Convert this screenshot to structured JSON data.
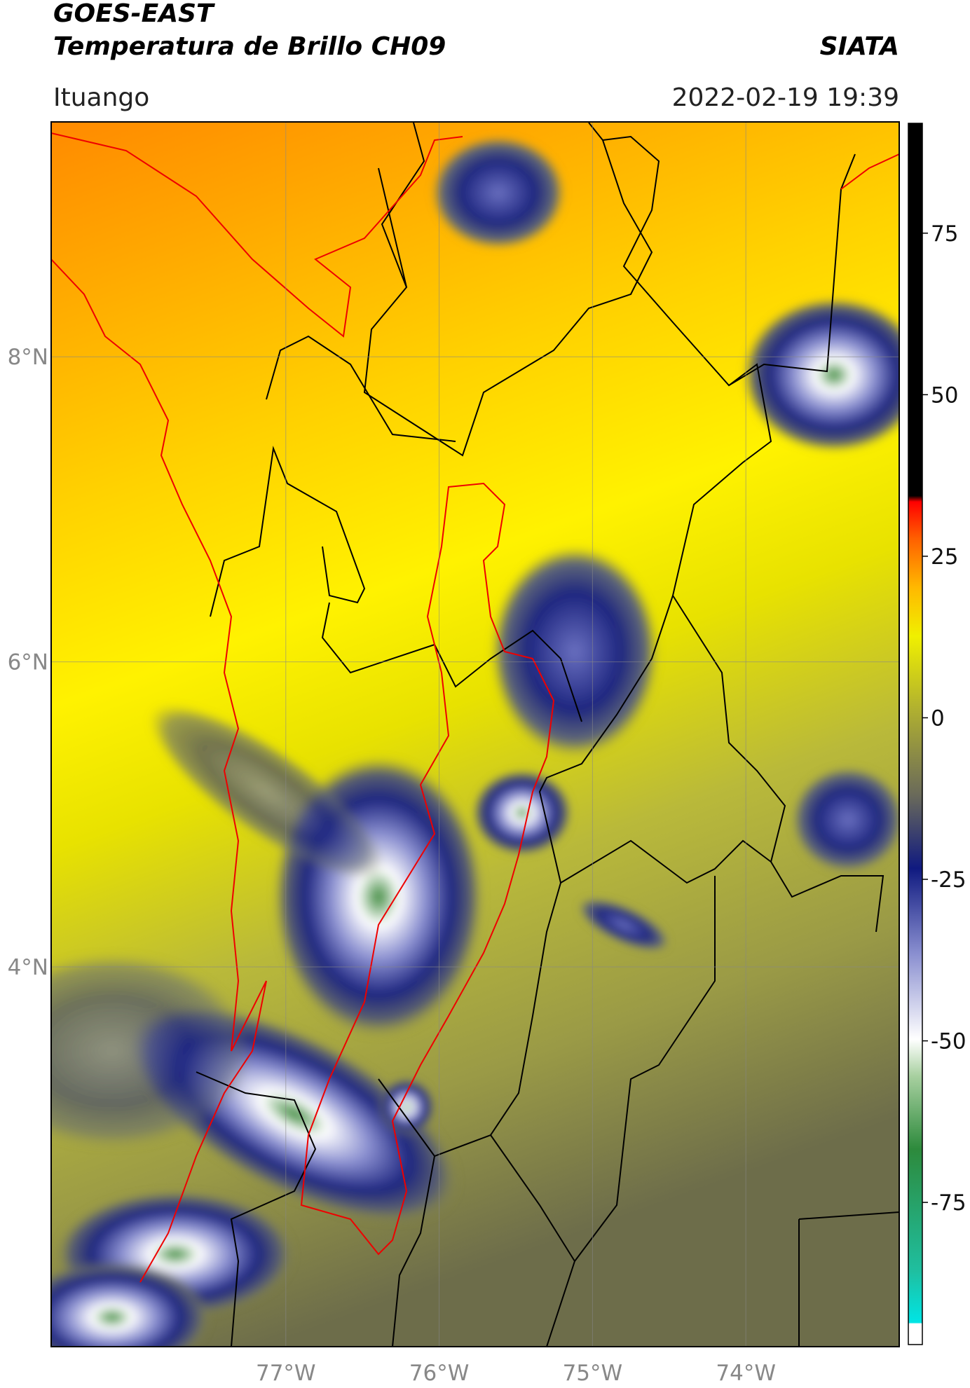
{
  "header": {
    "title": "GOES-EAST",
    "subtitle": "Temperatura de Brillo CH09",
    "organization": "SIATA",
    "location": "Ituango",
    "datetime": "2022-02-19 19:39"
  },
  "map": {
    "lon_range": [
      -78.53,
      -73.0
    ],
    "lat_range": [
      1.51,
      9.54
    ],
    "lat_ticks": [
      {
        "value": 8,
        "label": "8°N"
      },
      {
        "value": 6,
        "label": "6°N"
      },
      {
        "value": 4,
        "label": "4°N"
      }
    ],
    "lon_ticks": [
      {
        "value": -77,
        "label": "77°W"
      },
      {
        "value": -76,
        "label": "76°W"
      },
      {
        "value": -75,
        "label": "75°W"
      },
      {
        "value": -74,
        "label": "74°W"
      }
    ]
  },
  "colorbar": {
    "lim": [
      -97,
      92
    ],
    "ticks": [
      75,
      50,
      25,
      0,
      -25,
      -50,
      -75
    ]
  }
}
